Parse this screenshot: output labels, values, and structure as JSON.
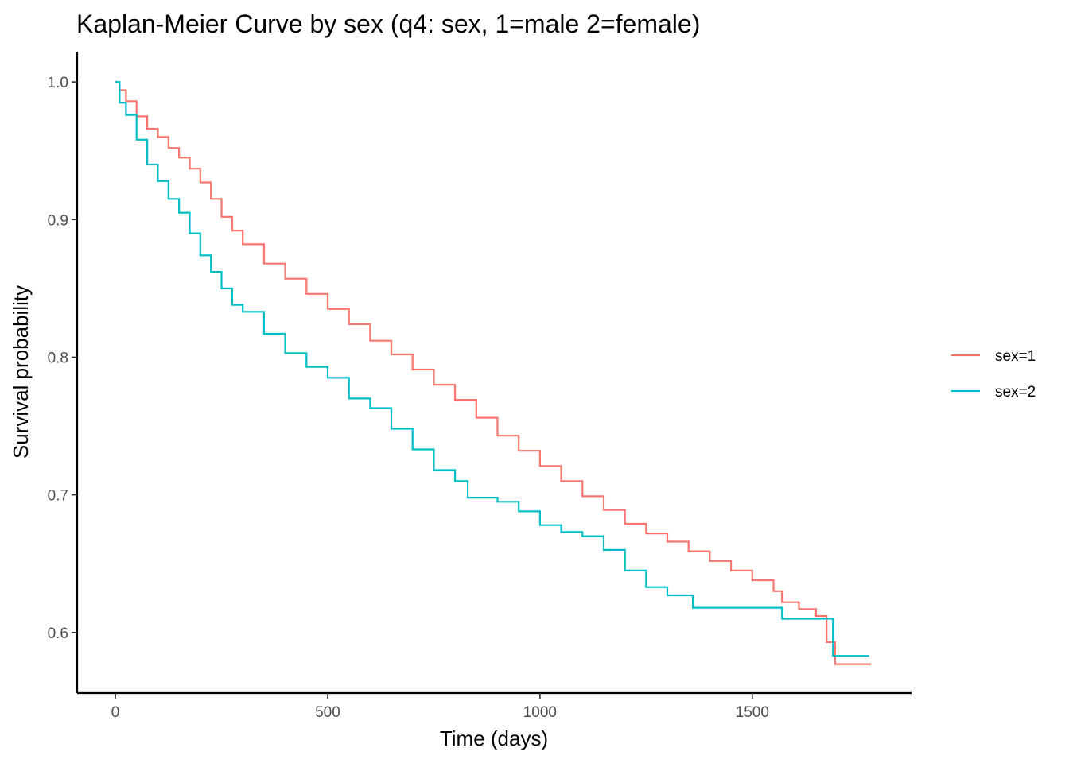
{
  "chart_data": {
    "type": "line",
    "step": true,
    "title": "Kaplan-Meier Curve by sex (q4: sex, 1=male 2=female)",
    "xlabel": "Time (days)",
    "ylabel": "Survival probability",
    "xlim": [
      -90,
      1875
    ],
    "ylim": [
      0.556,
      1.022
    ],
    "x_ticks": [
      0,
      500,
      1000,
      1500
    ],
    "x_tick_labels": [
      "0",
      "500",
      "1000",
      "1500"
    ],
    "y_ticks": [
      0.6,
      0.7,
      0.8,
      0.9,
      1.0
    ],
    "y_tick_labels": [
      "0.6",
      "0.7",
      "0.8",
      "0.9",
      "1.0"
    ],
    "grid": false,
    "legend_position": "right",
    "series": [
      {
        "name": "sex=1",
        "color": "#F8766D",
        "x": [
          0,
          10,
          25,
          50,
          75,
          100,
          125,
          150,
          175,
          200,
          225,
          250,
          275,
          300,
          350,
          400,
          450,
          500,
          550,
          600,
          650,
          700,
          750,
          800,
          850,
          900,
          950,
          1000,
          1050,
          1100,
          1150,
          1200,
          1250,
          1300,
          1350,
          1400,
          1450,
          1500,
          1550,
          1570,
          1610,
          1650,
          1675,
          1695,
          1780
        ],
        "y": [
          1.0,
          0.994,
          0.986,
          0.975,
          0.966,
          0.96,
          0.952,
          0.945,
          0.937,
          0.927,
          0.915,
          0.902,
          0.892,
          0.882,
          0.868,
          0.857,
          0.846,
          0.835,
          0.824,
          0.812,
          0.802,
          0.791,
          0.78,
          0.769,
          0.756,
          0.743,
          0.732,
          0.721,
          0.71,
          0.699,
          0.689,
          0.679,
          0.672,
          0.666,
          0.659,
          0.652,
          0.645,
          0.638,
          0.63,
          0.622,
          0.617,
          0.612,
          0.593,
          0.577,
          0.577
        ]
      },
      {
        "name": "sex=2",
        "color": "#00BFC4",
        "x": [
          0,
          10,
          25,
          50,
          75,
          100,
          125,
          150,
          175,
          200,
          225,
          250,
          275,
          300,
          350,
          400,
          450,
          500,
          550,
          600,
          650,
          700,
          750,
          800,
          830,
          900,
          950,
          1000,
          1050,
          1100,
          1150,
          1200,
          1250,
          1300,
          1360,
          1560,
          1570,
          1680,
          1690,
          1775
        ],
        "y": [
          1.0,
          0.985,
          0.976,
          0.958,
          0.94,
          0.928,
          0.915,
          0.905,
          0.89,
          0.874,
          0.862,
          0.85,
          0.838,
          0.833,
          0.817,
          0.803,
          0.793,
          0.785,
          0.77,
          0.763,
          0.748,
          0.733,
          0.718,
          0.71,
          0.698,
          0.695,
          0.688,
          0.678,
          0.673,
          0.67,
          0.66,
          0.645,
          0.633,
          0.627,
          0.618,
          0.618,
          0.61,
          0.61,
          0.583,
          0.583
        ]
      }
    ]
  }
}
